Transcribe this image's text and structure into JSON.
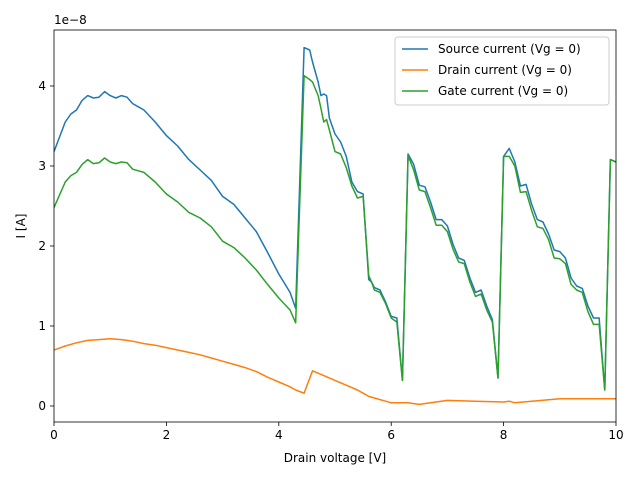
{
  "chart_data": {
    "type": "line",
    "title": "",
    "xlabel": "Drain voltage [V]",
    "ylabel": "I [A]",
    "y_offset_text": "1e−8",
    "y_scale_factor": 1e-08,
    "xlim": [
      0,
      10
    ],
    "ylim": [
      -0.2,
      4.7
    ],
    "x_ticks": [
      0,
      2,
      4,
      6,
      8,
      10
    ],
    "x_tick_labels": [
      "0",
      "2",
      "4",
      "6",
      "8",
      "10"
    ],
    "y_ticks": [
      0,
      1,
      2,
      3,
      4
    ],
    "y_tick_labels": [
      "0",
      "1",
      "2",
      "3",
      "4"
    ],
    "grid": false,
    "legend_position": "top-right",
    "series": [
      {
        "name": "Source current (Vg = 0)",
        "color": "#1f77b4",
        "x": [
          0,
          0.2,
          0.3,
          0.4,
          0.5,
          0.6,
          0.7,
          0.8,
          0.9,
          1.0,
          1.1,
          1.2,
          1.3,
          1.4,
          1.5,
          1.6,
          1.8,
          2.0,
          2.2,
          2.4,
          2.6,
          2.8,
          3.0,
          3.2,
          3.4,
          3.6,
          3.8,
          4.0,
          4.2,
          4.3,
          4.45,
          4.55,
          4.6,
          4.7,
          4.75,
          4.8,
          4.85,
          4.9,
          5.0,
          5.1,
          5.2,
          5.3,
          5.4,
          5.5,
          5.6,
          5.65,
          5.7,
          5.8,
          5.9,
          6.0,
          6.1,
          6.2,
          6.3,
          6.4,
          6.5,
          6.6,
          6.7,
          6.8,
          6.9,
          7.0,
          7.1,
          7.2,
          7.3,
          7.4,
          7.5,
          7.6,
          7.7,
          7.8,
          7.9,
          8.0,
          8.1,
          8.2,
          8.3,
          8.4,
          8.5,
          8.6,
          8.7,
          8.8,
          8.9,
          9.0,
          9.1,
          9.2,
          9.3,
          9.4,
          9.5,
          9.6,
          9.7,
          9.8,
          9.9,
          10.0
        ],
        "y": [
          3.18,
          3.55,
          3.65,
          3.7,
          3.82,
          3.88,
          3.85,
          3.86,
          3.93,
          3.88,
          3.85,
          3.88,
          3.86,
          3.78,
          3.74,
          3.7,
          3.55,
          3.38,
          3.25,
          3.08,
          2.95,
          2.82,
          2.62,
          2.52,
          2.35,
          2.18,
          1.92,
          1.65,
          1.42,
          1.22,
          4.48,
          4.45,
          4.3,
          4.05,
          3.88,
          3.9,
          3.88,
          3.6,
          3.4,
          3.3,
          3.12,
          2.8,
          2.68,
          2.65,
          1.58,
          1.55,
          1.48,
          1.45,
          1.3,
          1.12,
          1.1,
          0.32,
          3.15,
          3.02,
          2.76,
          2.74,
          2.55,
          2.33,
          2.33,
          2.25,
          2.02,
          1.85,
          1.82,
          1.6,
          1.42,
          1.45,
          1.25,
          1.08,
          0.35,
          3.12,
          3.22,
          3.05,
          2.75,
          2.77,
          2.52,
          2.33,
          2.3,
          2.15,
          1.95,
          1.93,
          1.85,
          1.6,
          1.5,
          1.47,
          1.25,
          1.1,
          1.1,
          0.2,
          3.08,
          3.05
        ]
      },
      {
        "name": "Drain current (Vg = 0)",
        "color": "#ff7f0e",
        "x": [
          0,
          0.2,
          0.4,
          0.6,
          0.8,
          1.0,
          1.2,
          1.4,
          1.6,
          1.8,
          2.0,
          2.2,
          2.4,
          2.6,
          2.8,
          3.0,
          3.2,
          3.4,
          3.6,
          3.8,
          4.0,
          4.2,
          4.3,
          4.45,
          4.6,
          4.8,
          5.0,
          5.2,
          5.4,
          5.5,
          5.6,
          6.0,
          6.3,
          6.4,
          6.5,
          7.0,
          7.5,
          8.0,
          8.1,
          8.2,
          9.0,
          9.9,
          10.0
        ],
        "y": [
          0.7,
          0.75,
          0.79,
          0.82,
          0.83,
          0.84,
          0.83,
          0.81,
          0.78,
          0.76,
          0.73,
          0.7,
          0.67,
          0.64,
          0.6,
          0.56,
          0.52,
          0.48,
          0.43,
          0.36,
          0.3,
          0.24,
          0.2,
          0.16,
          0.44,
          0.38,
          0.32,
          0.26,
          0.2,
          0.16,
          0.12,
          0.04,
          0.04,
          0.03,
          0.02,
          0.07,
          0.06,
          0.05,
          0.06,
          0.04,
          0.09,
          0.09,
          0.09
        ]
      },
      {
        "name": "Gate current (Vg = 0)",
        "color": "#2ca02c",
        "x": [
          0,
          0.2,
          0.3,
          0.4,
          0.5,
          0.6,
          0.7,
          0.8,
          0.9,
          1.0,
          1.1,
          1.2,
          1.3,
          1.4,
          1.5,
          1.6,
          1.8,
          2.0,
          2.2,
          2.4,
          2.6,
          2.8,
          3.0,
          3.2,
          3.4,
          3.6,
          3.8,
          4.0,
          4.2,
          4.3,
          4.45,
          4.55,
          4.6,
          4.7,
          4.75,
          4.8,
          4.85,
          4.9,
          5.0,
          5.1,
          5.2,
          5.3,
          5.4,
          5.5,
          5.6,
          5.65,
          5.7,
          5.8,
          5.9,
          6.0,
          6.1,
          6.2,
          6.3,
          6.4,
          6.5,
          6.6,
          6.7,
          6.8,
          6.9,
          7.0,
          7.1,
          7.2,
          7.3,
          7.4,
          7.5,
          7.6,
          7.7,
          7.8,
          7.9,
          8.0,
          8.1,
          8.2,
          8.3,
          8.4,
          8.5,
          8.6,
          8.7,
          8.8,
          8.9,
          9.0,
          9.1,
          9.2,
          9.3,
          9.4,
          9.5,
          9.6,
          9.7,
          9.8,
          9.9,
          10.0
        ],
        "y": [
          2.48,
          2.8,
          2.88,
          2.92,
          3.02,
          3.08,
          3.03,
          3.04,
          3.1,
          3.05,
          3.03,
          3.05,
          3.04,
          2.96,
          2.94,
          2.92,
          2.8,
          2.65,
          2.55,
          2.42,
          2.35,
          2.24,
          2.06,
          1.98,
          1.85,
          1.7,
          1.52,
          1.35,
          1.2,
          1.04,
          4.13,
          4.08,
          4.05,
          3.88,
          3.72,
          3.55,
          3.58,
          3.45,
          3.18,
          3.15,
          2.98,
          2.75,
          2.6,
          2.62,
          1.63,
          1.55,
          1.45,
          1.42,
          1.28,
          1.1,
          1.05,
          0.32,
          3.13,
          2.95,
          2.7,
          2.68,
          2.48,
          2.26,
          2.26,
          2.18,
          1.96,
          1.8,
          1.78,
          1.55,
          1.37,
          1.4,
          1.2,
          1.05,
          0.35,
          3.12,
          3.12,
          3.0,
          2.67,
          2.68,
          2.44,
          2.24,
          2.22,
          2.08,
          1.85,
          1.84,
          1.78,
          1.52,
          1.45,
          1.42,
          1.18,
          1.02,
          1.02,
          0.2,
          3.08,
          3.05
        ]
      }
    ]
  }
}
